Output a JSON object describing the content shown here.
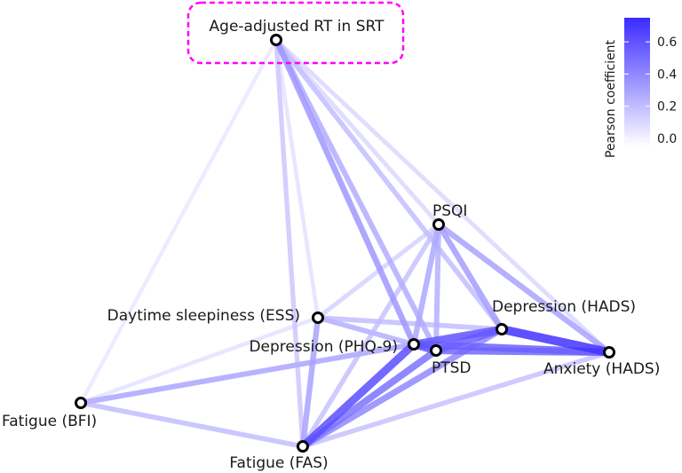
{
  "diagram": {
    "type": "correlation-network",
    "highlighted_node": "srt",
    "nodes": [
      {
        "id": "srt",
        "label": "Age-adjusted RT in SRT"
      },
      {
        "id": "psqi",
        "label": "PSQI"
      },
      {
        "id": "ess",
        "label": "Daytime sleepiness (ESS)"
      },
      {
        "id": "dep_hads",
        "label": "Depression (HADS)"
      },
      {
        "id": "phq9",
        "label": "Depression (PHQ-9)"
      },
      {
        "id": "ptsd",
        "label": "PTSD"
      },
      {
        "id": "anx_hads",
        "label": "Anxiety (HADS)"
      },
      {
        "id": "bfi",
        "label": "Fatigue (BFI)"
      },
      {
        "id": "fas",
        "label": "Fatigue (FAS)"
      }
    ],
    "edges": [
      {
        "source": "dep_hads",
        "target": "anx_hads",
        "r": 0.72
      },
      {
        "source": "phq9",
        "target": "fas",
        "r": 0.62
      },
      {
        "source": "phq9",
        "target": "dep_hads",
        "r": 0.58
      },
      {
        "source": "ptsd",
        "target": "dep_hads",
        "r": 0.55
      },
      {
        "source": "phq9",
        "target": "anx_hads",
        "r": 0.55
      },
      {
        "source": "ptsd",
        "target": "anx_hads",
        "r": 0.52
      },
      {
        "source": "phq9",
        "target": "ptsd",
        "r": 0.6
      },
      {
        "source": "ptsd",
        "target": "fas",
        "r": 0.48
      },
      {
        "source": "fas",
        "target": "dep_hads",
        "r": 0.4
      },
      {
        "source": "psqi",
        "target": "anx_hads",
        "r": 0.3
      },
      {
        "source": "psqi",
        "target": "dep_hads",
        "r": 0.32
      },
      {
        "source": "psqi",
        "target": "phq9",
        "r": 0.28
      },
      {
        "source": "psqi",
        "target": "ptsd",
        "r": 0.25
      },
      {
        "source": "psqi",
        "target": "fas",
        "r": 0.18
      },
      {
        "source": "psqi",
        "target": "ess",
        "r": 0.12
      },
      {
        "source": "ess",
        "target": "fas",
        "r": 0.3
      },
      {
        "source": "ess",
        "target": "phq9",
        "r": 0.22
      },
      {
        "source": "ess",
        "target": "dep_hads",
        "r": 0.2
      },
      {
        "source": "ess",
        "target": "ptsd",
        "r": 0.18
      },
      {
        "source": "ess",
        "target": "bfi",
        "r": 0.06
      },
      {
        "source": "bfi",
        "target": "phq9",
        "r": 0.26
      },
      {
        "source": "bfi",
        "target": "fas",
        "r": 0.2
      },
      {
        "source": "bfi",
        "target": "dep_hads",
        "r": 0.16
      },
      {
        "source": "fas",
        "target": "anx_hads",
        "r": 0.18
      },
      {
        "source": "srt",
        "target": "phq9",
        "r": 0.34
      },
      {
        "source": "srt",
        "target": "ptsd",
        "r": 0.26
      },
      {
        "source": "srt",
        "target": "dep_hads",
        "r": 0.2
      },
      {
        "source": "srt",
        "target": "fas",
        "r": 0.16
      },
      {
        "source": "srt",
        "target": "psqi",
        "r": 0.1
      },
      {
        "source": "srt",
        "target": "anx_hads",
        "r": 0.1
      },
      {
        "source": "srt",
        "target": "bfi",
        "r": 0.04
      },
      {
        "source": "srt",
        "target": "ess",
        "r": 0.06
      }
    ]
  },
  "legend": {
    "title": "Pearson coefficient",
    "ticks": [
      "0.6",
      "0.4",
      "0.2",
      "0.0"
    ],
    "tick_values": [
      0.6,
      0.4,
      0.2,
      0.0
    ],
    "range": [
      -0.05,
      0.75
    ],
    "color_low": "#ffffff",
    "color_high": "#3b2bff"
  }
}
